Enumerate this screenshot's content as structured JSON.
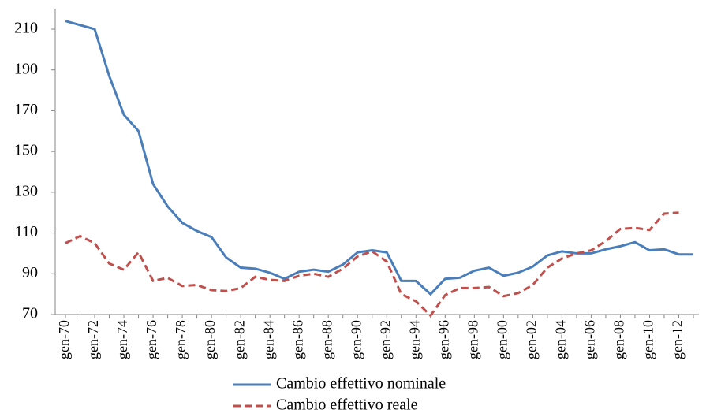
{
  "chart_data": {
    "type": "line",
    "categories": [
      "gen-70",
      null,
      "gen-72",
      null,
      "gen-74",
      null,
      "gen-76",
      null,
      "gen-78",
      null,
      "gen-80",
      null,
      "gen-82",
      null,
      "gen-84",
      null,
      "gen-86",
      null,
      "gen-88",
      null,
      "gen-90",
      null,
      "gen-92",
      null,
      "gen-94",
      null,
      "gen-96",
      null,
      "gen-98",
      null,
      "gen-00",
      null,
      "gen-02",
      null,
      "gen-04",
      null,
      "gen-06",
      null,
      "gen-08",
      null,
      "gen-10",
      null,
      "gen-12",
      null
    ],
    "series": [
      {
        "name": "Cambio effettivo nominale",
        "color": "#4a7ebb",
        "dashed": false,
        "values": [
          214,
          212,
          210,
          187,
          168,
          160,
          134,
          123,
          115,
          111,
          108,
          98,
          93,
          92.5,
          90.5,
          87.5,
          91,
          92,
          91,
          94.5,
          100.5,
          101.5,
          100.5,
          86.5,
          86.5,
          80,
          87.5,
          88,
          91.5,
          93,
          89,
          90.5,
          93.5,
          99,
          101,
          100,
          100,
          102,
          103.5,
          105.5,
          101.5,
          102,
          99.5,
          99.5
        ]
      },
      {
        "name": "Cambio effettivo reale",
        "color": "#c0504d",
        "dashed": true,
        "values": [
          105,
          108.5,
          105,
          95,
          92,
          100.5,
          86.5,
          88,
          84,
          84.5,
          82,
          81.5,
          83,
          88.5,
          87,
          86.5,
          89,
          90,
          88.5,
          92.5,
          98.5,
          101,
          96,
          80,
          76.5,
          69.5,
          79.5,
          83,
          83,
          83.5,
          79,
          80.5,
          84.5,
          93,
          97.5,
          100,
          101.5,
          106,
          112,
          112.5,
          111.5,
          119.5,
          120,
          null
        ]
      }
    ],
    "ylim": [
      70,
      220
    ],
    "yticks": [
      70,
      90,
      110,
      130,
      150,
      170,
      190,
      210
    ],
    "grid": false
  }
}
